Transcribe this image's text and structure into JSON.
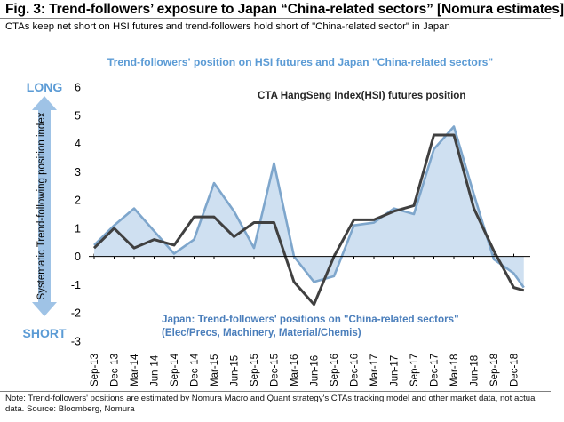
{
  "header": {
    "title": "Fig. 3: Trend-followers’ exposure to Japan “China-related sectors” [Nomura estimates]",
    "subtitle": "CTAs keep net short on HSI futures and trend-followers hold short of \"China-related sector\" in Japan"
  },
  "footer": {
    "note": "Note: Trend-followers' positions are estimated by Nomura Macro and Quant strategy's CTAs tracking model and other market data, not actual data. Source: Bloomberg, Nomura"
  },
  "colors": {
    "title_blue": "#5b9bd5",
    "japan_line": "#7ea6cc",
    "japan_fill": "#cfe0f1",
    "hsi_line": "#404040",
    "axis_arrow": "#9fc3e6",
    "annotation_blue": "#4a7ebb"
  },
  "chart_data": {
    "type": "area",
    "title": "Trend-followers' position on HSI futures and Japan \"China-related sectors\"",
    "ylabel": "Systematic Trend-following position index",
    "ylabel_top": "LONG",
    "ylabel_bottom": "SHORT",
    "ylim": [
      -3,
      6
    ],
    "yticks": [
      -3,
      -2,
      -1,
      0,
      1,
      2,
      3,
      4,
      5,
      6
    ],
    "grid": false,
    "xlabels": [
      "Sep-13",
      "Dec-13",
      "Mar-14",
      "Jun-14",
      "Sep-14",
      "Dec-14",
      "Mar-15",
      "Jun-15",
      "Sep-15",
      "Dec-15",
      "Mar-16",
      "Jun-16",
      "Sep-16",
      "Dec-16",
      "Mar-17",
      "Jun-17",
      "Sep-17",
      "Dec-17",
      "Mar-18",
      "Jun-18",
      "Sep-18",
      "Dec-18"
    ],
    "annotations": {
      "hsi": "CTA HangSeng Index(HSI) futures position",
      "japan_line1": "Japan: Trend-followers' positions on \"China-related sectors\"",
      "japan_line2": "(Elec/Precs, Machinery, Material/Chemis)"
    },
    "series": [
      {
        "name": "Japan: Trend-followers' positions on \"China-related sectors\"",
        "style": "area",
        "x": [
          0,
          1,
          2,
          3,
          4,
          5,
          6,
          7,
          8,
          9,
          10,
          11,
          12,
          13,
          14,
          15,
          16,
          17,
          18,
          19,
          20,
          21,
          21.5
        ],
        "values": [
          0.4,
          1.1,
          1.7,
          0.9,
          0.1,
          0.6,
          2.6,
          1.6,
          0.3,
          3.3,
          0.0,
          -0.9,
          -0.7,
          1.1,
          1.2,
          1.7,
          1.5,
          3.8,
          4.6,
          2.2,
          -0.1,
          -0.6,
          -1.1
        ]
      },
      {
        "name": "CTA HangSeng Index(HSI) futures position",
        "style": "line",
        "x": [
          0,
          1,
          2,
          3,
          4,
          5,
          6,
          7,
          8,
          9,
          10,
          11,
          12,
          13,
          14,
          15,
          16,
          17,
          18,
          19,
          20,
          21,
          21.5
        ],
        "values": [
          0.3,
          1.0,
          0.3,
          0.6,
          0.4,
          1.4,
          1.4,
          0.7,
          1.2,
          1.2,
          -0.9,
          -1.7,
          0.0,
          1.3,
          1.3,
          1.6,
          1.8,
          4.3,
          4.3,
          1.7,
          0.2,
          -1.1,
          -1.2
        ]
      }
    ]
  }
}
